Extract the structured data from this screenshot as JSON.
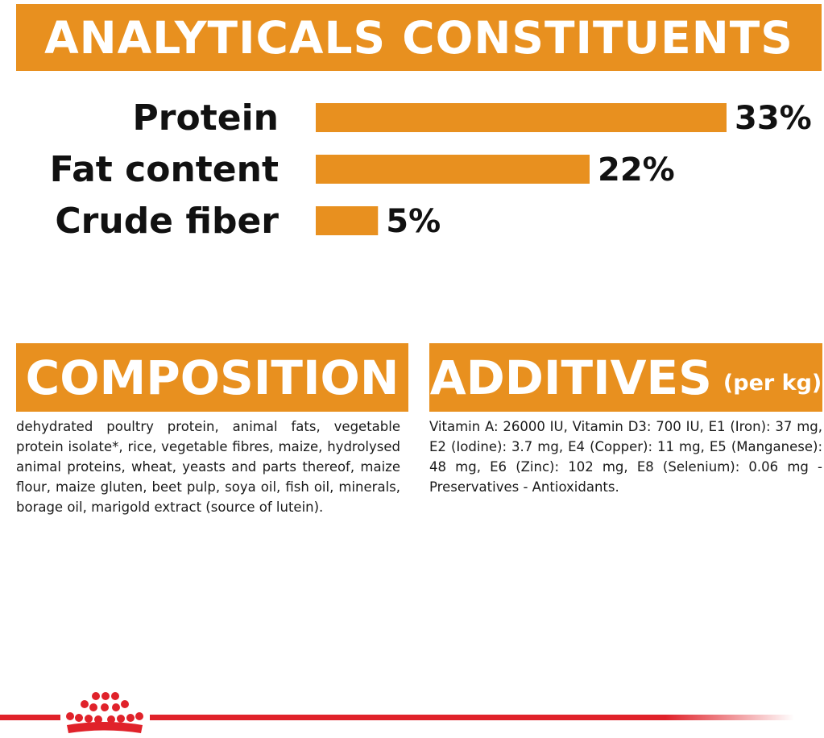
{
  "headings": {
    "analyticals": "ANALYTICALS CONSTITUENTS",
    "composition": "COMPOSITION",
    "additives": "ADDITIVES",
    "additives_sub": "(per kg)"
  },
  "chart_data": {
    "type": "bar",
    "orientation": "horizontal",
    "title": "ANALYTICALS CONSTITUENTS",
    "categories": [
      "Protein",
      "Fat content",
      "Crude fiber"
    ],
    "values": [
      33,
      22,
      5
    ],
    "value_labels": [
      "33%",
      "22%",
      "5%"
    ],
    "unit": "%",
    "xlim": [
      0,
      33
    ],
    "grid": false,
    "bar_color": "#e8901f"
  },
  "composition_text": "dehydrated poultry protein, animal fats, vegetable protein isolate*, rice, vegetable fibres, maize, hydrolysed animal proteins, wheat, yeasts and parts thereof, maize flour, maize gluten, beet pulp, soya oil, fish oil, minerals, borage oil, marigold extract (source of lutein).",
  "additives_text": "Vitamin A: 26000 IU, Vitamin D3: 700 IU, E1 (Iron): 37 mg, E2 (Iodine): 3.7 mg, E4 (Copper): 11 mg, E5 (Manganese): 48 mg, E6 (Zinc): 102 mg, E8 (Selenium): 0.06 mg - Preservatives - Antioxidants.",
  "footer": {
    "logo_icon": "crown-icon",
    "accent_color": "#e0222a"
  }
}
